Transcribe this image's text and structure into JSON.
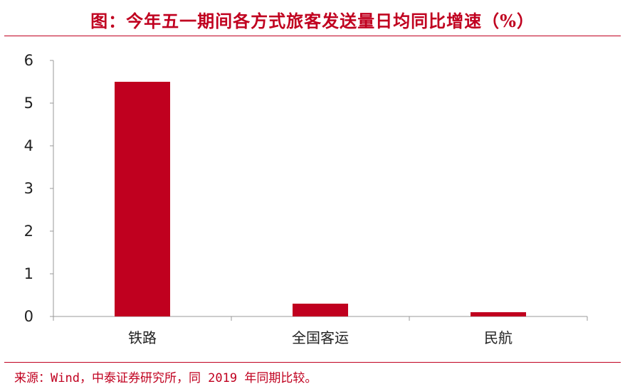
{
  "title": "图：今年五一期间各方式旅客发送量日均同比增速（%）",
  "source": "来源：Wind，中泰证券研究所，同 2019 年同期比较。",
  "colors": {
    "accent": "#c0001f",
    "bar": "#c0001f",
    "axis": "#999999"
  },
  "chart_data": {
    "type": "bar",
    "title": "图：今年五一期间各方式旅客发送量日均同比增速（%）",
    "xlabel": "",
    "ylabel": "",
    "categories": [
      "铁路",
      "全国客运",
      "民航"
    ],
    "values": [
      5.5,
      0.3,
      0.1
    ],
    "ylim": [
      0,
      6
    ],
    "yticks": [
      0,
      1,
      2,
      3,
      4,
      5,
      6
    ],
    "grid": false,
    "legend": "none"
  }
}
